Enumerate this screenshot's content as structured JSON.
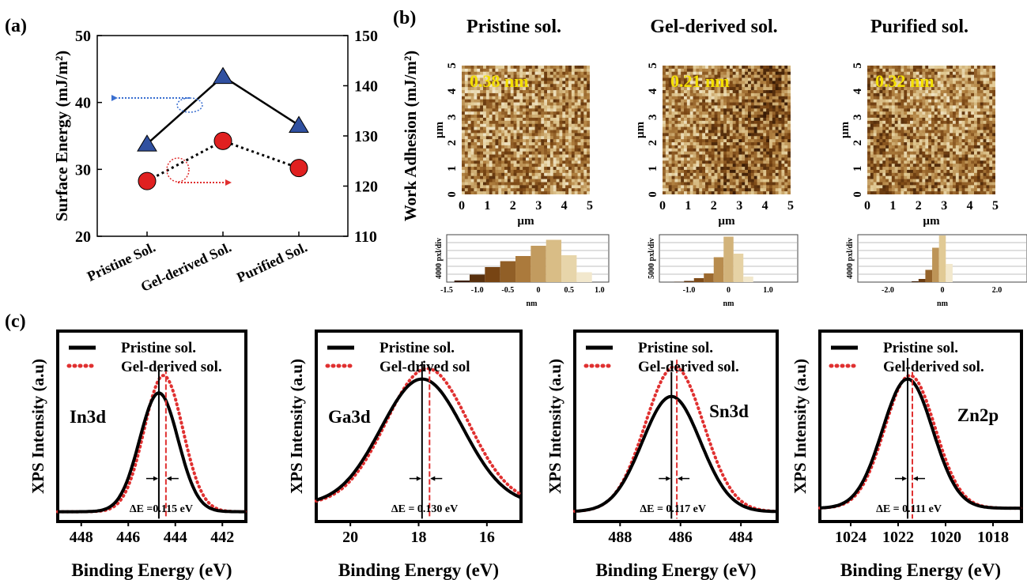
{
  "panel_labels": [
    "(a)",
    "(b)",
    "(c)"
  ],
  "colors": {
    "triangle": "#3050a0",
    "circle": "#e02020",
    "pristine_line": "#000000",
    "gel_line": "#e03030",
    "afm_dark": "#3a1c06",
    "afm_light": "#f4ecd0"
  },
  "icons": [
    "left-arrow-icon",
    "right-arrow-icon",
    "dotted-ellipse-icon"
  ],
  "chart_data": [
    {
      "type": "line",
      "panel": "(a)",
      "categories": [
        "Pristine Sol.",
        "Gel-derived Sol.",
        "Purified Sol."
      ],
      "ylabel": "Surface Energy (mJ/m²)",
      "ylim": [
        20,
        50
      ],
      "yticks": [
        20,
        30,
        40,
        50
      ],
      "y2label": "Work Adhesion (mJ/m²)",
      "y2lim": [
        110,
        150
      ],
      "y2ticks": [
        110,
        120,
        130,
        140,
        150
      ],
      "series": [
        {
          "axis": "left",
          "marker": "triangle",
          "line": "solid",
          "values": [
            33.8,
            43.9,
            36.6
          ]
        },
        {
          "axis": "right",
          "marker": "circle",
          "line": "dotted",
          "values": [
            121,
            129,
            123.6
          ]
        }
      ]
    },
    {
      "type": "heatmap",
      "panel": "(b)",
      "grid": "off",
      "images": [
        {
          "title": "Pristine sol.",
          "roughness": "0.38 nm",
          "xlabel": "µm",
          "ylabel": "µm",
          "xticks": [
            0,
            1,
            2,
            3,
            4,
            5
          ],
          "yticks": [
            0,
            1,
            2,
            3,
            4,
            5
          ],
          "hist_ylabel": "4000 pxl/div",
          "hist_xlabel": "nm",
          "hist_ticks": [
            "-1.5",
            "-1.0",
            "-0.5",
            "0",
            "0.5",
            "1.0"
          ],
          "hist_range": [
            -1.5,
            1.15
          ],
          "hist_bins": [
            -1.25,
            -1.0,
            -0.75,
            -0.5,
            -0.25,
            0,
            0.25,
            0.5,
            0.75
          ],
          "hist_values": [
            0.4,
            1.9,
            3.8,
            5.3,
            6.6,
            9.2,
            10.7,
            6.8,
            2.5
          ]
        },
        {
          "title": "Gel-derived sol.",
          "roughness": "0.21 nm",
          "xlabel": "µm",
          "ylabel": "µm",
          "xticks": [
            0,
            1,
            2,
            3,
            4,
            5
          ],
          "yticks": [
            0,
            1,
            2,
            3,
            4,
            5
          ],
          "hist_ylabel": "5000 pxl/div",
          "hist_xlabel": "nm",
          "hist_ticks": [
            "-1.0",
            "0",
            "1.0"
          ],
          "hist_range": [
            -1.75,
            1.75
          ],
          "hist_bins": [
            -1.25,
            -1.0,
            -0.75,
            -0.5,
            -0.25,
            0,
            0.25,
            0.5
          ],
          "hist_values": [
            0.08,
            0.3,
            1.0,
            2.2,
            6.3,
            11.5,
            7.2,
            1.4
          ]
        },
        {
          "title": "Purified sol.",
          "roughness": "0.32 nm",
          "xlabel": "µm",
          "ylabel": "µm",
          "xticks": [
            0,
            1,
            2,
            3,
            4,
            5
          ],
          "yticks": [
            0,
            1,
            2,
            3,
            4,
            5
          ],
          "hist_ylabel": "4000 pxl/div",
          "hist_xlabel": "nm",
          "hist_ticks": [
            "-2.0",
            "0",
            "2.0"
          ],
          "hist_range": [
            -3.1,
            3.1
          ],
          "hist_bins": [
            -1.0,
            -0.75,
            -0.5,
            -0.25,
            0,
            0.25
          ],
          "hist_values": [
            0.2,
            0.8,
            3.1,
            8.7,
            11.8,
            4.6
          ]
        }
      ]
    },
    {
      "type": "line",
      "panel": "(c)",
      "legend_placement": "top-left",
      "plots": [
        {
          "peak": "In3d",
          "xlabel": "Binding Energy (eV)",
          "ylabel": "XPS Intensity (a.u)",
          "xlim": [
            449,
            441
          ],
          "xticks": [
            448,
            446,
            444,
            442
          ],
          "legend": [
            "Pristine sol.",
            "Gel-derived sol."
          ],
          "pristine_peak": 444.7,
          "gel_peak": 444.5,
          "width": 0.85,
          "pristine_height": 0.68,
          "gel_height": 0.78,
          "baseline": 0.02,
          "delta": "ΔE =0.115 eV"
        },
        {
          "peak": "Ga3d",
          "xlabel": "Binding Energy (eV)",
          "ylabel": "XPS Intensity (a.u)",
          "xlim": [
            21,
            15
          ],
          "xticks": [
            20,
            18,
            16
          ],
          "legend": [
            "Pristine sol.",
            "Gel-drived sol"
          ],
          "pristine_peak": 17.9,
          "gel_peak": 17.75,
          "width": 1.25,
          "pristine_height": 0.72,
          "gel_height": 0.78,
          "baseline": 0.06,
          "delta": "ΔE = 0.130 eV"
        },
        {
          "peak": "Sn3d",
          "xlabel": "Binding Energy (eV)",
          "ylabel": "XPS Intensity (a.u)",
          "xlim": [
            489.5,
            482.8
          ],
          "xticks": [
            488,
            486,
            484
          ],
          "legend": [
            "Pristine sol.",
            "Gel-derived sol."
          ],
          "pristine_peak": 486.3,
          "gel_peak": 486.2,
          "width": 1.0,
          "pristine_height": 0.66,
          "gel_height": 0.83,
          "baseline": 0.02,
          "delta": "ΔE = 0.117 eV"
        },
        {
          "peak": "Zn2p",
          "xlabel": "Binding Energy (eV)",
          "ylabel": "XPS Intensity (a.u)",
          "xlim": [
            1025.3,
            1016.8
          ],
          "xticks": [
            1024,
            1022,
            1020,
            1018
          ],
          "legend": [
            "Pristine sol.",
            "Gel-derived sol."
          ],
          "pristine_peak": 1021.6,
          "gel_peak": 1021.5,
          "width": 1.1,
          "pristine_height": 0.74,
          "gel_height": 0.76,
          "baseline": 0.04,
          "delta": "ΔE = 0.111 eV"
        }
      ]
    }
  ]
}
